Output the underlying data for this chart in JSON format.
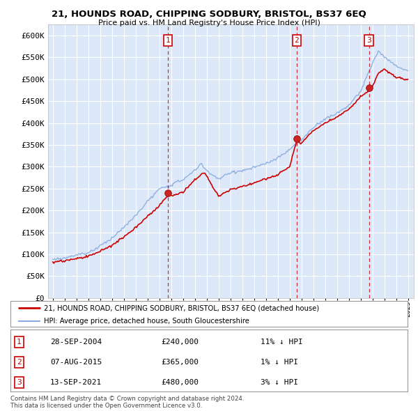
{
  "title": "21, HOUNDS ROAD, CHIPPING SODBURY, BRISTOL, BS37 6EQ",
  "subtitle": "Price paid vs. HM Land Registry's House Price Index (HPI)",
  "house_color": "#cc0000",
  "hpi_color": "#88aadd",
  "background_color": "#ffffff",
  "plot_bg_color": "#dce8f8",
  "grid_color": "#ffffff",
  "ylim": [
    0,
    625000
  ],
  "yticks": [
    0,
    50000,
    100000,
    150000,
    200000,
    250000,
    300000,
    350000,
    400000,
    450000,
    500000,
    550000,
    600000
  ],
  "sales": [
    {
      "date": 2004.74,
      "price": 240000,
      "label": "1"
    },
    {
      "date": 2015.6,
      "price": 365000,
      "label": "2"
    },
    {
      "date": 2021.71,
      "price": 480000,
      "label": "3"
    }
  ],
  "sale_annotations": [
    {
      "label": "1",
      "date_str": "28-SEP-2004",
      "price": "£240,000",
      "pct": "11% ↓ HPI"
    },
    {
      "label": "2",
      "date_str": "07-AUG-2015",
      "price": "£365,000",
      "pct": "1% ↓ HPI"
    },
    {
      "label": "3",
      "date_str": "13-SEP-2021",
      "price": "£480,000",
      "pct": "3% ↓ HPI"
    }
  ],
  "legend_house": "21, HOUNDS ROAD, CHIPPING SODBURY, BRISTOL, BS37 6EQ (detached house)",
  "legend_hpi": "HPI: Average price, detached house, South Gloucestershire",
  "footer1": "Contains HM Land Registry data © Crown copyright and database right 2024.",
  "footer2": "This data is licensed under the Open Government Licence v3.0.",
  "xmin": 1994.6,
  "xmax": 2025.5
}
